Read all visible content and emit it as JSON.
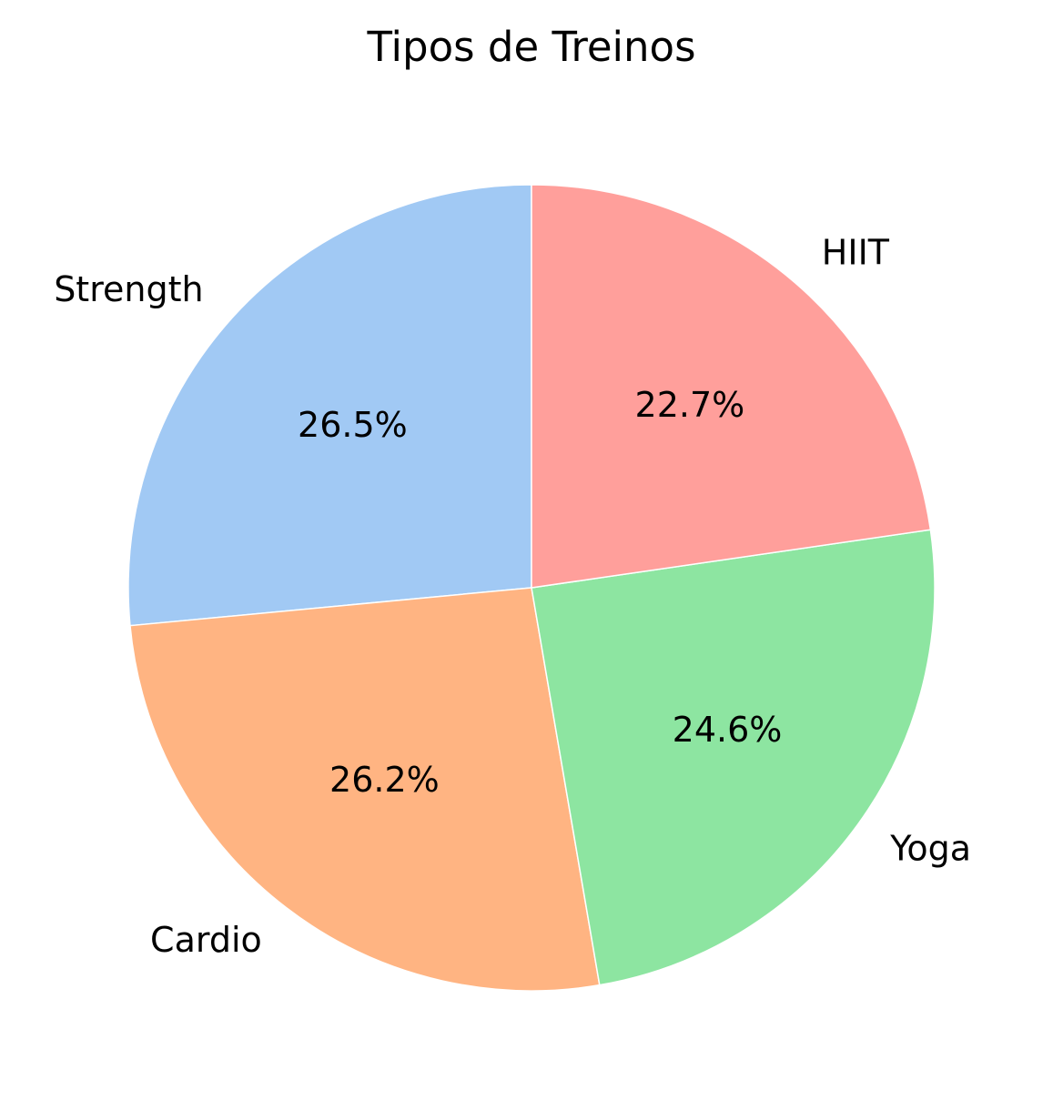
{
  "chart_data": {
    "type": "pie",
    "title": "Tipos de Treinos",
    "categories": [
      "Strength",
      "Cardio",
      "Yoga",
      "HIIT"
    ],
    "values": [
      26.5,
      26.2,
      24.6,
      22.7
    ],
    "value_labels": [
      "26.5%",
      "26.2%",
      "24.6%",
      "22.7%"
    ],
    "colors": [
      "#a1c9f4",
      "#ffb482",
      "#8de5a1",
      "#ff9f9b"
    ],
    "start_angle_deg": 90,
    "direction": "counterclockwise",
    "legend": "none"
  }
}
